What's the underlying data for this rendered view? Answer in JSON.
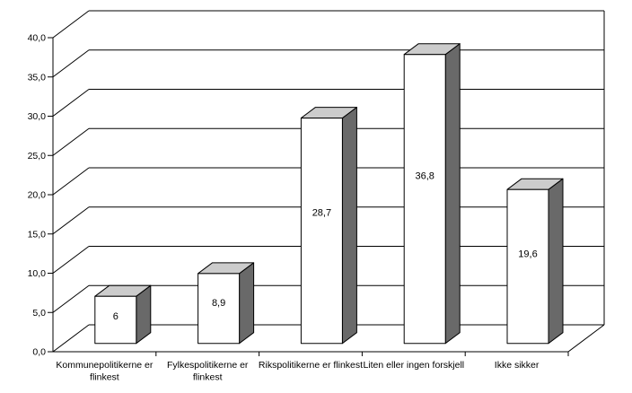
{
  "chart_data": {
    "type": "bar",
    "style": "3d-column",
    "title": "",
    "xlabel": "",
    "ylabel": "",
    "categories": [
      "Kommunepolitikerne er flinkest",
      "Fylkespolitikerne er flinkest",
      "Rikspolitikerne er flinkest",
      "Liten eller ingen forskjell",
      "Ikke sikker"
    ],
    "category_label_lines": [
      [
        "Kommunepolitikerne er",
        "flinkest"
      ],
      [
        "Fylkespolitikerne er",
        "flinkest"
      ],
      [
        "Rikspolitikerne er flinkest"
      ],
      [
        "Liten eller ingen forskjell"
      ],
      [
        "Ikke sikker"
      ]
    ],
    "series": [
      {
        "name": "",
        "values": [
          6,
          8.9,
          28.7,
          36.8,
          19.6
        ],
        "labels": [
          "6",
          "8,9",
          "28,7",
          "36,8",
          "19,6"
        ]
      }
    ],
    "y_axis": {
      "min": 0,
      "max": 40,
      "step": 5,
      "tick_labels": [
        "0,0",
        "5,0",
        "10,0",
        "15,0",
        "20,0",
        "25,0",
        "30,0",
        "35,0",
        "40,0"
      ]
    },
    "grid": true,
    "legend": false,
    "colors": {
      "bar_front": "#ffffff",
      "bar_top": "#cccccc",
      "bar_side": "#696969",
      "line": "#000000",
      "background": "#ffffff",
      "text": "#000000"
    }
  }
}
